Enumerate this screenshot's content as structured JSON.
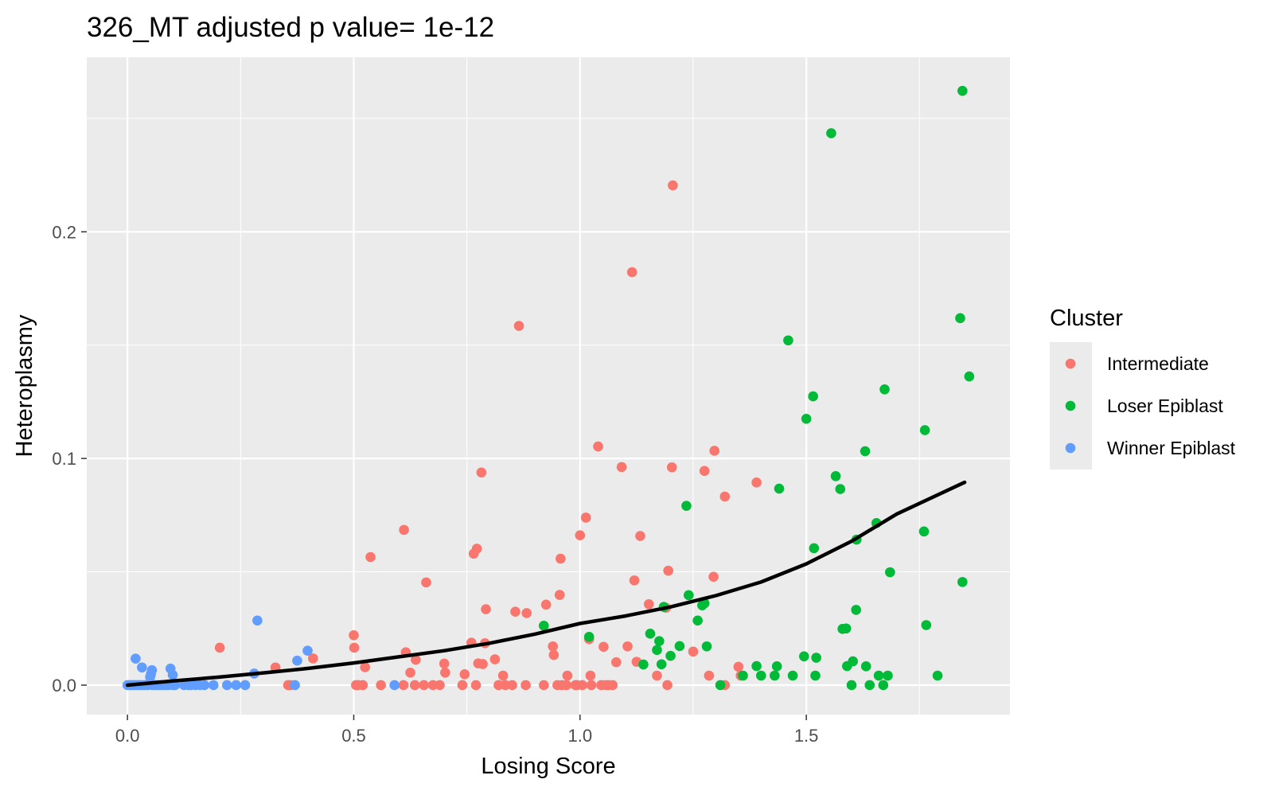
{
  "chart_data": {
    "type": "scatter",
    "title": "326_MT adjusted p value= 1e-12",
    "xlabel": "Losing Score",
    "ylabel": "Heteroplasmy",
    "xlim": [
      -0.09,
      1.95
    ],
    "ylim": [
      -0.013,
      0.277
    ],
    "x_ticks": [
      0.0,
      0.5,
      1.0,
      1.5
    ],
    "x_tick_labels": [
      "0.0",
      "0.5",
      "1.0",
      "1.5"
    ],
    "y_ticks": [
      0.0,
      0.1,
      0.2
    ],
    "y_tick_labels": [
      "0.0",
      "0.1",
      "0.2"
    ],
    "grid": true,
    "panel_background": "#ebebeb",
    "legend": {
      "title": "Cluster",
      "position": "right",
      "entries": [
        "Intermediate",
        "Loser Epiblast",
        "Winner Epiblast"
      ]
    },
    "series": [
      {
        "name": "Intermediate",
        "color": "#F8766D",
        "points": [
          [
            0.204,
            0.0165
          ],
          [
            0.327,
            0.0078
          ],
          [
            0.355,
            0.0
          ],
          [
            0.36,
            0.0
          ],
          [
            0.41,
            0.0118
          ],
          [
            0.5,
            0.022
          ],
          [
            0.501,
            0.0165
          ],
          [
            0.505,
            0.0
          ],
          [
            0.51,
            0.0
          ],
          [
            0.52,
            0.0
          ],
          [
            0.525,
            0.0079
          ],
          [
            0.537,
            0.0565
          ],
          [
            0.56,
            0.0
          ],
          [
            0.61,
            0.0
          ],
          [
            0.611,
            0.0685
          ],
          [
            0.615,
            0.0145
          ],
          [
            0.625,
            0.0055
          ],
          [
            0.635,
            0.0
          ],
          [
            0.637,
            0.0112
          ],
          [
            0.655,
            0.0
          ],
          [
            0.66,
            0.0453
          ],
          [
            0.675,
            0.0
          ],
          [
            0.69,
            0.0
          ],
          [
            0.7,
            0.0095
          ],
          [
            0.702,
            0.0055
          ],
          [
            0.74,
            0.0
          ],
          [
            0.745,
            0.0048
          ],
          [
            0.76,
            0.0187
          ],
          [
            0.765,
            0.058
          ],
          [
            0.77,
            0.0
          ],
          [
            0.772,
            0.0602
          ],
          [
            0.775,
            0.0096
          ],
          [
            0.782,
            0.0938
          ],
          [
            0.785,
            0.0093
          ],
          [
            0.79,
            0.0185
          ],
          [
            0.792,
            0.0335
          ],
          [
            0.812,
            0.0114
          ],
          [
            0.82,
            0.0
          ],
          [
            0.83,
            0.0042
          ],
          [
            0.835,
            0.0
          ],
          [
            0.85,
            0.0
          ],
          [
            0.857,
            0.0324
          ],
          [
            0.865,
            0.1585
          ],
          [
            0.88,
            0.0
          ],
          [
            0.882,
            0.0318
          ],
          [
            0.92,
            0.0
          ],
          [
            0.925,
            0.0355
          ],
          [
            0.94,
            0.0171
          ],
          [
            0.942,
            0.0133
          ],
          [
            0.95,
            0.0
          ],
          [
            0.955,
            0.0398
          ],
          [
            0.957,
            0.0558
          ],
          [
            0.96,
            0.0
          ],
          [
            0.97,
            0.0
          ],
          [
            0.972,
            0.0042
          ],
          [
            0.99,
            0.0
          ],
          [
            0.993,
            0.0
          ],
          [
            1.0,
            0.0661
          ],
          [
            1.005,
            0.0
          ],
          [
            1.013,
            0.0739
          ],
          [
            1.02,
            0.0203
          ],
          [
            1.023,
            0.0042
          ],
          [
            1.025,
            0.0
          ],
          [
            1.04,
            0.1053
          ],
          [
            1.047,
            0.0
          ],
          [
            1.052,
            0.0169
          ],
          [
            1.057,
            0.0
          ],
          [
            1.063,
            0.0
          ],
          [
            1.072,
            0.0
          ],
          [
            1.08,
            0.0101
          ],
          [
            1.092,
            0.0962
          ],
          [
            1.105,
            0.0171
          ],
          [
            1.115,
            0.1822
          ],
          [
            1.12,
            0.0462
          ],
          [
            1.125,
            0.0103
          ],
          [
            1.133,
            0.0658
          ],
          [
            1.152,
            0.0357
          ],
          [
            1.17,
            0.0042
          ],
          [
            1.19,
            0.0341
          ],
          [
            1.193,
            0.0
          ],
          [
            1.195,
            0.0505
          ],
          [
            1.205,
            0.2205
          ],
          [
            1.203,
            0.0961
          ],
          [
            1.25,
            0.0148
          ],
          [
            1.275,
            0.0945
          ],
          [
            1.285,
            0.0042
          ],
          [
            1.295,
            0.0478
          ],
          [
            1.297,
            0.1034
          ],
          [
            1.32,
            0.0
          ],
          [
            1.32,
            0.0832
          ],
          [
            1.35,
            0.0081
          ],
          [
            1.355,
            0.0042
          ],
          [
            1.39,
            0.0894
          ]
        ]
      },
      {
        "name": "Loser Epiblast",
        "color": "#00BA38",
        "points": [
          [
            0.92,
            0.0262
          ],
          [
            1.02,
            0.0213
          ],
          [
            1.14,
            0.0091
          ],
          [
            1.155,
            0.0227
          ],
          [
            1.17,
            0.0155
          ],
          [
            1.175,
            0.0194
          ],
          [
            1.18,
            0.0092
          ],
          [
            1.185,
            0.0345
          ],
          [
            1.2,
            0.0129
          ],
          [
            1.22,
            0.0172
          ],
          [
            1.235,
            0.0791
          ],
          [
            1.24,
            0.0397
          ],
          [
            1.26,
            0.0285
          ],
          [
            1.27,
            0.0352
          ],
          [
            1.275,
            0.0361
          ],
          [
            1.28,
            0.0171
          ],
          [
            1.31,
            0.0
          ],
          [
            1.36,
            0.0042
          ],
          [
            1.39,
            0.0084
          ],
          [
            1.4,
            0.0042
          ],
          [
            1.43,
            0.0042
          ],
          [
            1.435,
            0.0083
          ],
          [
            1.44,
            0.0867
          ],
          [
            1.46,
            0.1521
          ],
          [
            1.47,
            0.0042
          ],
          [
            1.495,
            0.0127
          ],
          [
            1.5,
            0.1175
          ],
          [
            1.515,
            0.1274
          ],
          [
            1.517,
            0.0604
          ],
          [
            1.52,
            0.0042
          ],
          [
            1.522,
            0.0121
          ],
          [
            1.555,
            0.2435
          ],
          [
            1.565,
            0.0922
          ],
          [
            1.575,
            0.0865
          ],
          [
            1.58,
            0.0248
          ],
          [
            1.588,
            0.025
          ],
          [
            1.59,
            0.0084
          ],
          [
            1.6,
            0.0
          ],
          [
            1.603,
            0.0105
          ],
          [
            1.61,
            0.0332
          ],
          [
            1.611,
            0.0642
          ],
          [
            1.63,
            0.1032
          ],
          [
            1.632,
            0.0083
          ],
          [
            1.64,
            0.0
          ],
          [
            1.655,
            0.0715
          ],
          [
            1.66,
            0.0042
          ],
          [
            1.67,
            0.0
          ],
          [
            1.673,
            0.1305
          ],
          [
            1.68,
            0.0042
          ],
          [
            1.685,
            0.0498
          ],
          [
            1.76,
            0.0678
          ],
          [
            1.762,
            0.1125
          ],
          [
            1.765,
            0.0265
          ],
          [
            1.79,
            0.0042
          ],
          [
            1.84,
            0.1619
          ],
          [
            1.845,
            0.2622
          ],
          [
            1.845,
            0.0455
          ],
          [
            1.86,
            0.1362
          ]
        ]
      },
      {
        "name": "Winner Epiblast",
        "color": "#619CFF",
        "points": [
          [
            0.0,
            0.0
          ],
          [
            0.005,
            0.0
          ],
          [
            0.01,
            0.0
          ],
          [
            0.015,
            0.0
          ],
          [
            0.018,
            0.0117
          ],
          [
            0.02,
            0.0
          ],
          [
            0.025,
            0.0
          ],
          [
            0.03,
            0.0
          ],
          [
            0.032,
            0.0078
          ],
          [
            0.035,
            0.0
          ],
          [
            0.04,
            0.0
          ],
          [
            0.045,
            0.0
          ],
          [
            0.05,
            0.0036
          ],
          [
            0.052,
            0.005
          ],
          [
            0.054,
            0.0066
          ],
          [
            0.055,
            0.0
          ],
          [
            0.06,
            0.0
          ],
          [
            0.065,
            0.0
          ],
          [
            0.07,
            0.0
          ],
          [
            0.075,
            0.0
          ],
          [
            0.08,
            0.0
          ],
          [
            0.085,
            0.0
          ],
          [
            0.09,
            0.0
          ],
          [
            0.095,
            0.0073
          ],
          [
            0.1,
            0.0045
          ],
          [
            0.1,
            0.0
          ],
          [
            0.105,
            0.0
          ],
          [
            0.125,
            0.0
          ],
          [
            0.135,
            0.0
          ],
          [
            0.14,
            0.0
          ],
          [
            0.15,
            0.0
          ],
          [
            0.16,
            0.0
          ],
          [
            0.17,
            0.0
          ],
          [
            0.19,
            0.0
          ],
          [
            0.22,
            0.0
          ],
          [
            0.24,
            0.0
          ],
          [
            0.26,
            0.0
          ],
          [
            0.28,
            0.0051
          ],
          [
            0.287,
            0.0285
          ],
          [
            0.37,
            0.0
          ],
          [
            0.375,
            0.0108
          ],
          [
            0.398,
            0.0152
          ],
          [
            0.59,
            0.0
          ]
        ]
      }
    ],
    "smooth_line": {
      "color": "#000000",
      "points": [
        [
          0.0,
          0.0
        ],
        [
          0.1,
          0.0018
        ],
        [
          0.2,
          0.0035
        ],
        [
          0.3,
          0.0054
        ],
        [
          0.4,
          0.0074
        ],
        [
          0.5,
          0.0098
        ],
        [
          0.6,
          0.0125
        ],
        [
          0.7,
          0.0152
        ],
        [
          0.8,
          0.0185
        ],
        [
          0.9,
          0.0225
        ],
        [
          1.0,
          0.0272
        ],
        [
          1.1,
          0.0305
        ],
        [
          1.2,
          0.0345
        ],
        [
          1.3,
          0.0395
        ],
        [
          1.4,
          0.0455
        ],
        [
          1.5,
          0.0535
        ],
        [
          1.6,
          0.0635
        ],
        [
          1.7,
          0.0755
        ],
        [
          1.85,
          0.0895
        ]
      ]
    }
  }
}
